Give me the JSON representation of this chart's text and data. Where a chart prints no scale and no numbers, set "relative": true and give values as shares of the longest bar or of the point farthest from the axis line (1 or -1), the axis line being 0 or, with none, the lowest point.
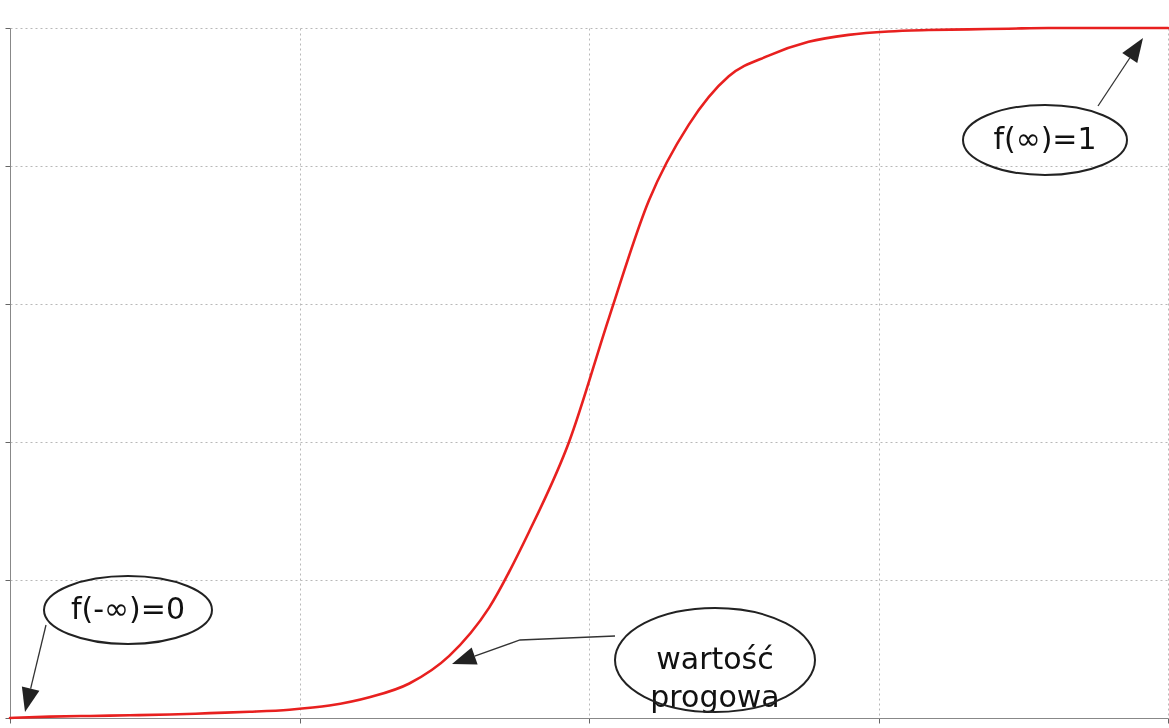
{
  "chart_data": {
    "type": "line",
    "relative": true,
    "grid": true,
    "color": "#e8201f",
    "categories": [
      null,
      null,
      null,
      null,
      null,
      null,
      null,
      null,
      null,
      null,
      null,
      null,
      null,
      null,
      null,
      null,
      null,
      null,
      null,
      null,
      null,
      null,
      null,
      null,
      null,
      null,
      null,
      null,
      null,
      null
    ],
    "values": [
      0,
      0.002,
      0.003,
      0.004,
      0.005,
      0.007,
      0.009,
      0.012,
      0.018,
      0.03,
      0.05,
      0.09,
      0.16,
      0.27,
      0.4,
      0.58,
      0.75,
      0.86,
      0.93,
      0.96,
      0.98,
      0.99,
      0.995,
      0.997,
      0.998,
      0.999,
      1,
      1,
      1,
      1
    ],
    "annotations": [
      "f(-∞)=0",
      "wartość progowa",
      "f(∞)=1"
    ]
  }
}
